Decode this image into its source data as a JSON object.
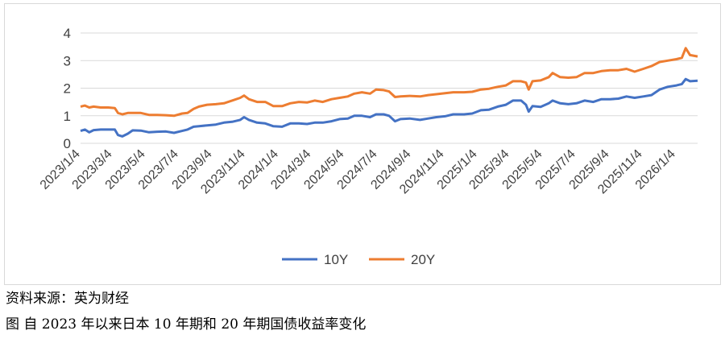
{
  "source_text": "资料来源：英为财经",
  "figure_caption": "图  自 2023 年以来日本 10 年期和 20 年期国债收益率变化",
  "chart_data": {
    "type": "line",
    "title": "",
    "xlabel": "",
    "ylabel": "",
    "ylim": [
      0,
      4
    ],
    "yticks": [
      "0",
      "1",
      "2",
      "3",
      "4"
    ],
    "grid": true,
    "legend_position": "bottom",
    "x_start": "2023/1/4",
    "x_end": "2026/2/13",
    "x_tick_labels": [
      "2023/1/4",
      "2023/3/4",
      "2023/5/4",
      "2023/7/4",
      "2023/9/4",
      "2023/11/4",
      "2024/1/4",
      "2024/3/4",
      "2024/5/4",
      "2024/7/4",
      "2024/9/4",
      "2024/11/4",
      "2025/1/4",
      "2025/3/4",
      "2025/5/4",
      "2025/7/4",
      "2025/9/4",
      "2025/11/4",
      "2026/1/4"
    ],
    "series": [
      {
        "name": "10Y",
        "color": "#4472c4",
        "points": [
          [
            "2023/1/4",
            0.45
          ],
          [
            "2023/1/12",
            0.5
          ],
          [
            "2023/1/20",
            0.4
          ],
          [
            "2023/1/28",
            0.48
          ],
          [
            "2023/2/10",
            0.5
          ],
          [
            "2023/2/24",
            0.5
          ],
          [
            "2023/3/8",
            0.5
          ],
          [
            "2023/3/14",
            0.3
          ],
          [
            "2023/3/22",
            0.25
          ],
          [
            "2023/4/1",
            0.35
          ],
          [
            "2023/4/10",
            0.47
          ],
          [
            "2023/4/25",
            0.46
          ],
          [
            "2023/5/10",
            0.4
          ],
          [
            "2023/5/25",
            0.42
          ],
          [
            "2023/6/10",
            0.43
          ],
          [
            "2023/6/25",
            0.38
          ],
          [
            "2023/7/10",
            0.45
          ],
          [
            "2023/7/20",
            0.5
          ],
          [
            "2023/7/31",
            0.6
          ],
          [
            "2023/8/10",
            0.62
          ],
          [
            "2023/8/25",
            0.65
          ],
          [
            "2023/9/10",
            0.68
          ],
          [
            "2023/9/25",
            0.75
          ],
          [
            "2023/10/10",
            0.78
          ],
          [
            "2023/10/25",
            0.85
          ],
          [
            "2023/11/1",
            0.95
          ],
          [
            "2023/11/10",
            0.85
          ],
          [
            "2023/11/25",
            0.75
          ],
          [
            "2023/12/10",
            0.72
          ],
          [
            "2023/12/25",
            0.62
          ],
          [
            "2024/1/10",
            0.6
          ],
          [
            "2024/1/25",
            0.72
          ],
          [
            "2024/2/10",
            0.72
          ],
          [
            "2024/2/25",
            0.7
          ],
          [
            "2024/3/10",
            0.75
          ],
          [
            "2024/3/25",
            0.75
          ],
          [
            "2024/4/10",
            0.8
          ],
          [
            "2024/4/25",
            0.88
          ],
          [
            "2024/5/10",
            0.9
          ],
          [
            "2024/5/22",
            1.0
          ],
          [
            "2024/6/5",
            1.0
          ],
          [
            "2024/6/20",
            0.95
          ],
          [
            "2024/7/1",
            1.05
          ],
          [
            "2024/7/15",
            1.05
          ],
          [
            "2024/7/25",
            1.0
          ],
          [
            "2024/8/5",
            0.8
          ],
          [
            "2024/8/15",
            0.88
          ],
          [
            "2024/9/1",
            0.9
          ],
          [
            "2024/9/20",
            0.85
          ],
          [
            "2024/10/5",
            0.9
          ],
          [
            "2024/10/20",
            0.95
          ],
          [
            "2024/11/5",
            0.98
          ],
          [
            "2024/11/20",
            1.05
          ],
          [
            "2024/12/10",
            1.05
          ],
          [
            "2024/12/25",
            1.08
          ],
          [
            "2025/1/10",
            1.2
          ],
          [
            "2025/1/25",
            1.22
          ],
          [
            "2025/2/10",
            1.33
          ],
          [
            "2025/2/25",
            1.4
          ],
          [
            "2025/3/10",
            1.55
          ],
          [
            "2025/3/25",
            1.55
          ],
          [
            "2025/4/3",
            1.4
          ],
          [
            "2025/4/8",
            1.15
          ],
          [
            "2025/4/15",
            1.35
          ],
          [
            "2025/4/30",
            1.32
          ],
          [
            "2025/5/15",
            1.45
          ],
          [
            "2025/5/22",
            1.55
          ],
          [
            "2025/6/5",
            1.45
          ],
          [
            "2025/6/20",
            1.42
          ],
          [
            "2025/7/5",
            1.45
          ],
          [
            "2025/7/20",
            1.55
          ],
          [
            "2025/8/5",
            1.5
          ],
          [
            "2025/8/20",
            1.6
          ],
          [
            "2025/9/5",
            1.6
          ],
          [
            "2025/9/20",
            1.62
          ],
          [
            "2025/10/5",
            1.7
          ],
          [
            "2025/10/20",
            1.65
          ],
          [
            "2025/11/5",
            1.7
          ],
          [
            "2025/11/20",
            1.75
          ],
          [
            "2025/12/5",
            1.95
          ],
          [
            "2025/12/20",
            2.05
          ],
          [
            "2026/1/5",
            2.1
          ],
          [
            "2026/1/15",
            2.15
          ],
          [
            "2026/1/22",
            2.33
          ],
          [
            "2026/1/30",
            2.25
          ],
          [
            "2026/2/13",
            2.27
          ]
        ]
      },
      {
        "name": "20Y",
        "color": "#ed7d31",
        "points": [
          [
            "2023/1/4",
            1.33
          ],
          [
            "2023/1/12",
            1.37
          ],
          [
            "2023/1/20",
            1.3
          ],
          [
            "2023/1/28",
            1.33
          ],
          [
            "2023/2/10",
            1.3
          ],
          [
            "2023/2/24",
            1.3
          ],
          [
            "2023/3/8",
            1.28
          ],
          [
            "2023/3/14",
            1.1
          ],
          [
            "2023/3/22",
            1.05
          ],
          [
            "2023/4/1",
            1.1
          ],
          [
            "2023/4/10",
            1.1
          ],
          [
            "2023/4/25",
            1.1
          ],
          [
            "2023/5/10",
            1.03
          ],
          [
            "2023/5/25",
            1.03
          ],
          [
            "2023/6/10",
            1.02
          ],
          [
            "2023/6/25",
            1.0
          ],
          [
            "2023/7/10",
            1.08
          ],
          [
            "2023/7/20",
            1.1
          ],
          [
            "2023/7/31",
            1.25
          ],
          [
            "2023/8/10",
            1.33
          ],
          [
            "2023/8/25",
            1.4
          ],
          [
            "2023/9/10",
            1.42
          ],
          [
            "2023/9/25",
            1.45
          ],
          [
            "2023/10/10",
            1.55
          ],
          [
            "2023/10/25",
            1.65
          ],
          [
            "2023/11/1",
            1.73
          ],
          [
            "2023/11/10",
            1.6
          ],
          [
            "2023/11/25",
            1.5
          ],
          [
            "2023/12/10",
            1.5
          ],
          [
            "2023/12/25",
            1.35
          ],
          [
            "2024/1/10",
            1.35
          ],
          [
            "2024/1/25",
            1.45
          ],
          [
            "2024/2/10",
            1.5
          ],
          [
            "2024/2/25",
            1.48
          ],
          [
            "2024/3/10",
            1.55
          ],
          [
            "2024/3/25",
            1.5
          ],
          [
            "2024/4/10",
            1.6
          ],
          [
            "2024/4/25",
            1.65
          ],
          [
            "2024/5/10",
            1.7
          ],
          [
            "2024/5/22",
            1.8
          ],
          [
            "2024/6/5",
            1.85
          ],
          [
            "2024/6/20",
            1.8
          ],
          [
            "2024/7/1",
            1.95
          ],
          [
            "2024/7/15",
            1.93
          ],
          [
            "2024/7/25",
            1.88
          ],
          [
            "2024/8/5",
            1.68
          ],
          [
            "2024/8/15",
            1.7
          ],
          [
            "2024/9/1",
            1.72
          ],
          [
            "2024/9/20",
            1.7
          ],
          [
            "2024/10/5",
            1.75
          ],
          [
            "2024/10/20",
            1.78
          ],
          [
            "2024/11/5",
            1.82
          ],
          [
            "2024/11/20",
            1.85
          ],
          [
            "2024/12/10",
            1.85
          ],
          [
            "2024/12/25",
            1.87
          ],
          [
            "2025/1/10",
            1.95
          ],
          [
            "2025/1/25",
            1.98
          ],
          [
            "2025/2/10",
            2.05
          ],
          [
            "2025/2/25",
            2.1
          ],
          [
            "2025/3/10",
            2.25
          ],
          [
            "2025/3/25",
            2.25
          ],
          [
            "2025/4/3",
            2.2
          ],
          [
            "2025/4/8",
            1.95
          ],
          [
            "2025/4/15",
            2.25
          ],
          [
            "2025/4/30",
            2.28
          ],
          [
            "2025/5/15",
            2.4
          ],
          [
            "2025/5/22",
            2.55
          ],
          [
            "2025/6/5",
            2.4
          ],
          [
            "2025/6/20",
            2.38
          ],
          [
            "2025/7/5",
            2.4
          ],
          [
            "2025/7/20",
            2.55
          ],
          [
            "2025/8/5",
            2.55
          ],
          [
            "2025/8/20",
            2.62
          ],
          [
            "2025/9/5",
            2.65
          ],
          [
            "2025/9/20",
            2.65
          ],
          [
            "2025/10/5",
            2.7
          ],
          [
            "2025/10/20",
            2.6
          ],
          [
            "2025/11/5",
            2.7
          ],
          [
            "2025/11/20",
            2.8
          ],
          [
            "2025/12/5",
            2.95
          ],
          [
            "2025/12/20",
            3.0
          ],
          [
            "2026/1/5",
            3.05
          ],
          [
            "2026/1/15",
            3.1
          ],
          [
            "2026/1/22",
            3.45
          ],
          [
            "2026/1/30",
            3.2
          ],
          [
            "2026/2/13",
            3.15
          ]
        ]
      }
    ]
  }
}
